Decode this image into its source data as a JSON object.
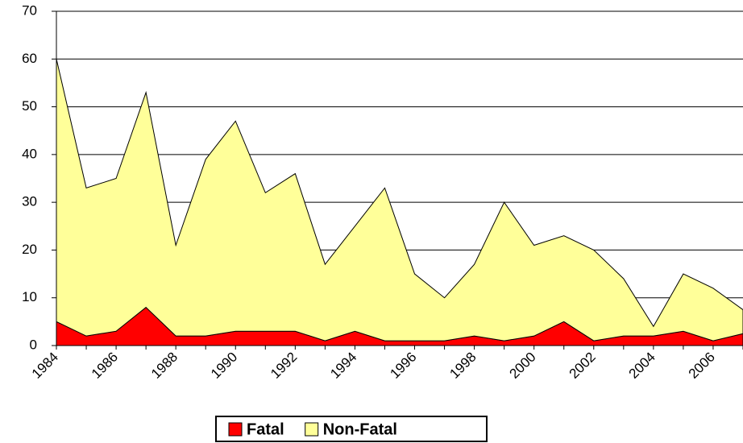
{
  "chart_data": {
    "type": "stacked-area",
    "categories": [
      "1984",
      null,
      "1986",
      null,
      "1988",
      null,
      "1990",
      null,
      "1992",
      null,
      "1994",
      null,
      "1996",
      null,
      "1998",
      null,
      "2000",
      null,
      "2002",
      null,
      "2004",
      null,
      "2006",
      null
    ],
    "series": [
      {
        "name": "Fatal",
        "color": "#ff0000",
        "values": [
          5,
          2,
          3,
          8,
          2,
          2,
          3,
          3,
          3,
          1,
          3,
          1,
          1,
          1,
          2,
          1,
          2,
          5,
          1,
          2,
          2,
          3,
          1,
          2.5
        ]
      },
      {
        "name": "Non-Fatal",
        "color": "#ffff99",
        "values": [
          55,
          31,
          32,
          45,
          19,
          37,
          44,
          29,
          33,
          16,
          22,
          32,
          14,
          9,
          15,
          29,
          19,
          18,
          19,
          12,
          2,
          12,
          11,
          5
        ]
      }
    ],
    "ylim": [
      0,
      70
    ],
    "yticks": [
      0,
      10,
      20,
      30,
      40,
      50,
      60,
      70
    ],
    "grid": true,
    "legend": "bottom"
  }
}
